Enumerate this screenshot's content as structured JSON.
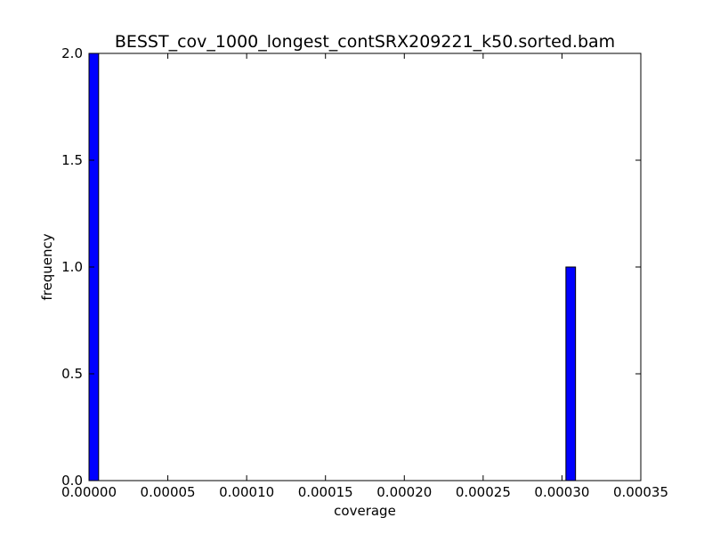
{
  "chart_data": {
    "type": "bar",
    "title": "BESST_cov_1000_longest_contSRX209221_k50.sorted.bam",
    "xlabel": "coverage",
    "ylabel": "frequency",
    "xlim": [
      0,
      0.00035
    ],
    "ylim": [
      0,
      2.0
    ],
    "xticks": [
      0,
      5e-05,
      0.0001,
      0.00015,
      0.0002,
      0.00025,
      0.0003,
      0.00035
    ],
    "xtick_labels": [
      "0.00000",
      "0.00005",
      "0.00010",
      "0.00015",
      "0.00020",
      "0.00025",
      "0.00030",
      "0.00035"
    ],
    "yticks": [
      0,
      0.5,
      1.0,
      1.5,
      2.0
    ],
    "ytick_labels": [
      "0.0",
      "0.5",
      "1.0",
      "1.5",
      "2.0"
    ],
    "bars": [
      {
        "x_start": 0.0,
        "x_end": 6.1e-06,
        "value": 2
      },
      {
        "x_start": 0.0003025,
        "x_end": 0.0003086,
        "value": 1
      }
    ],
    "bar_color": "#0000ff",
    "grid": false,
    "legend": "none"
  }
}
